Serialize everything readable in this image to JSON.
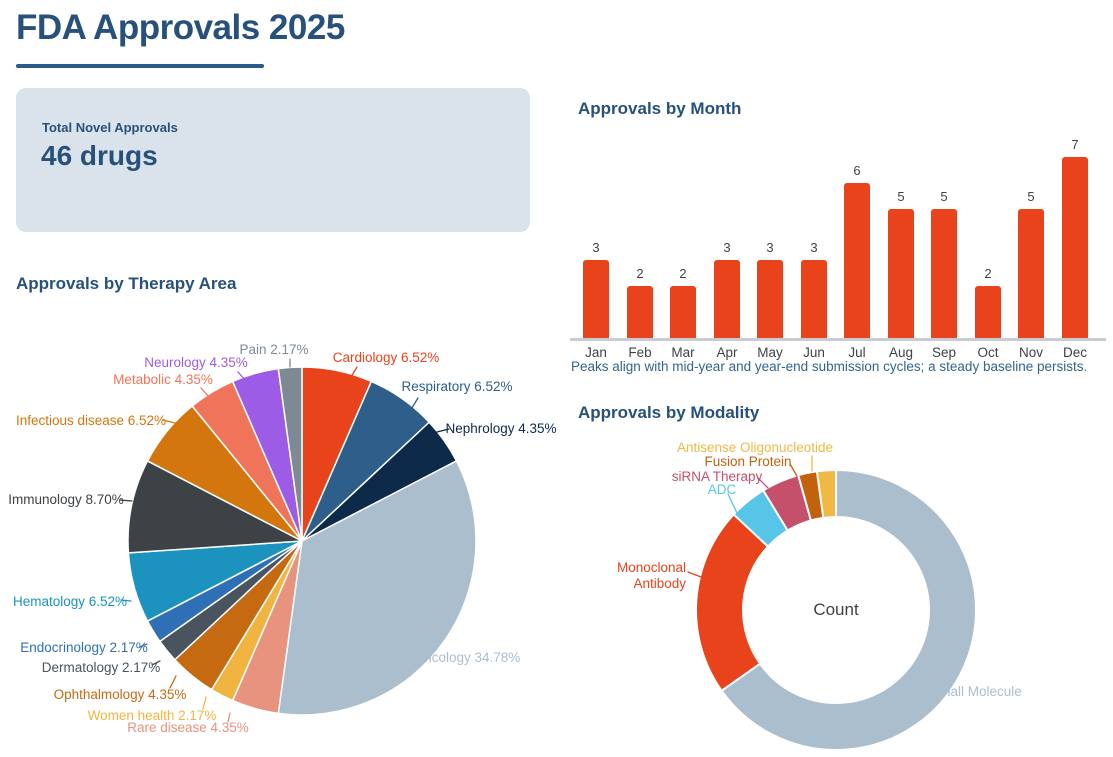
{
  "header": {
    "title": "FDA Approvals 2025"
  },
  "stat_card": {
    "label": "Total Novel Approvals",
    "value": "46 drugs"
  },
  "theme": {
    "heading_color": "#27517B",
    "underline_color": "#2A5A8C",
    "caption_color": "#31648F",
    "card_bg": "#DAE3EB",
    "label_gray": "#3E4247",
    "axis_color": "#C8CCD0",
    "background": "#FFFFFF"
  },
  "chart_data": [
    {
      "id": "approvals_by_month",
      "type": "bar",
      "title": "Approvals by Month",
      "categories": [
        "Jan",
        "Feb",
        "Mar",
        "Apr",
        "May",
        "Jun",
        "Jul",
        "Aug",
        "Sep",
        "Oct",
        "Nov",
        "Dec"
      ],
      "values": [
        3,
        2,
        2,
        3,
        3,
        3,
        6,
        5,
        5,
        2,
        5,
        7
      ],
      "bar_color": "#E8431A",
      "value_labels": true,
      "grid": false,
      "ylim": [
        0,
        7
      ],
      "caption": "Peaks align with mid-year and year-end submission cycles; a steady baseline persists."
    },
    {
      "id": "approvals_by_therapy_area",
      "type": "pie",
      "title": "Approvals by Therapy Area",
      "total": 46,
      "start_angle_deg": 0,
      "clockwise": true,
      "slices": [
        {
          "label": "Cardiology",
          "count": 3,
          "pct": "6.52%",
          "display": "Cardiology 6.52%",
          "color": "#E8431A"
        },
        {
          "label": "Respiratory",
          "count": 3,
          "pct": "6.52%",
          "display": "Respiratory 6.52%",
          "color": "#2D5F8A"
        },
        {
          "label": "Nephrology",
          "count": 2,
          "pct": "4.35%",
          "display": "Nephrology 4.35%",
          "color": "#0E2A4A"
        },
        {
          "label": "Oncology",
          "count": 16,
          "pct": "34.78%",
          "display": "Oncology 34.78%",
          "color": "#AABECE"
        },
        {
          "label": "Rare disease",
          "count": 2,
          "pct": "4.35%",
          "display": "Rare disease 4.35%",
          "color": "#E8937E"
        },
        {
          "label": "Women health",
          "count": 1,
          "pct": "2.17%",
          "display": "Women health 2.17%",
          "color": "#F2B440"
        },
        {
          "label": "Ophthalmology",
          "count": 2,
          "pct": "4.35%",
          "display": "Ophthalmology 4.35%",
          "color": "#C56A11"
        },
        {
          "label": "Dermatology",
          "count": 1,
          "pct": "2.17%",
          "display": "Dermatology 2.17%",
          "color": "#49545E"
        },
        {
          "label": "Endocrinology",
          "count": 1,
          "pct": "2.17%",
          "display": "Endocrinology 2.17%",
          "color": "#2F6FB6"
        },
        {
          "label": "Hematology",
          "count": 3,
          "pct": "6.52%",
          "display": "Hematology 6.52%",
          "color": "#1B93BE"
        },
        {
          "label": "Immunology",
          "count": 4,
          "pct": "8.70%",
          "display": "Immunology 8.70%",
          "color": "#3D4247"
        },
        {
          "label": "Infectious disease",
          "count": 3,
          "pct": "6.52%",
          "display": "Infectious disease 6.52%",
          "color": "#D3760D"
        },
        {
          "label": "Metabolic",
          "count": 2,
          "pct": "4.35%",
          "display": "Metabolic 4.35%",
          "color": "#F0745A"
        },
        {
          "label": "Neurology",
          "count": 2,
          "pct": "4.35%",
          "display": "Neurology 4.35%",
          "color": "#9C5CE6"
        },
        {
          "label": "Pain",
          "count": 1,
          "pct": "2.17%",
          "display": "Pain 2.17%",
          "color": "#7E8A93"
        }
      ]
    },
    {
      "id": "approvals_by_modality",
      "type": "donut",
      "title": "Approvals by Modality",
      "center_label": "Count",
      "total": 46,
      "start_angle_deg": 0,
      "clockwise": true,
      "segments": [
        {
          "label": "Small Molecule",
          "count": 30,
          "color": "#AABECE"
        },
        {
          "label": "Monoclonal Antibody",
          "count": 10,
          "color": "#E8431A"
        },
        {
          "label": "ADC",
          "count": 2,
          "color": "#56C5E8"
        },
        {
          "label": "siRNA Therapy",
          "count": 2,
          "color": "#C4506B"
        },
        {
          "label": "Fusion Protein",
          "count": 1,
          "color": "#C2620D"
        },
        {
          "label": "Antisense Oligonucleotide",
          "count": 1,
          "color": "#F0B844"
        }
      ]
    }
  ]
}
